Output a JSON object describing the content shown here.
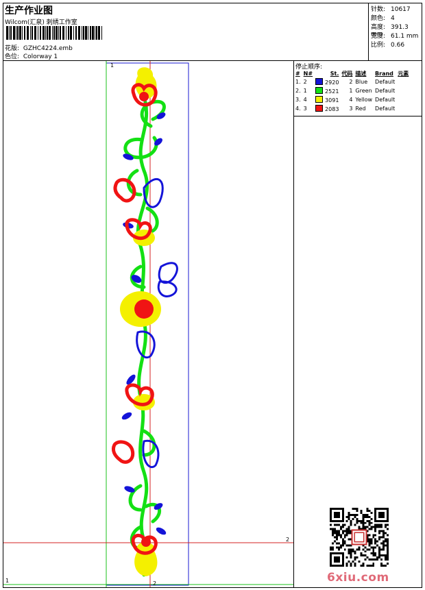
{
  "header": {
    "title": "生产作业图",
    "company": "Wilcom(汇泉) 刺绣工作室",
    "design_label": "花版:",
    "design_value": "GZHC4224.emb",
    "colorway_label": "色位:",
    "colorway_value": "Colorway 1"
  },
  "stats": [
    {
      "label": "针数:",
      "value": "10617"
    },
    {
      "label": "颜色:",
      "value": "4"
    },
    {
      "label": "高度:",
      "value": "391.3 mm"
    },
    {
      "label": "宽度:",
      "value": "61.1 mm"
    },
    {
      "label": "比例:",
      "value": "0.66"
    }
  ],
  "stop_sequence": {
    "title": "停止顺序:",
    "columns": [
      "#",
      "N#",
      "St.",
      "代码",
      "描述",
      "Brand",
      "元素"
    ],
    "rows": [
      {
        "num": "1.",
        "n": "2",
        "color": "#1414d8",
        "st": "2920",
        "code": "2",
        "desc": "Blue",
        "brand": "Default"
      },
      {
        "num": "2.",
        "n": "1",
        "color": "#14e014",
        "st": "2521",
        "code": "1",
        "desc": "Green",
        "brand": "Default"
      },
      {
        "num": "3.",
        "n": "4",
        "color": "#f4f000",
        "st": "3091",
        "code": "4",
        "desc": "Yellow",
        "brand": "Default"
      },
      {
        "num": "4.",
        "n": "3",
        "color": "#f01414",
        "st": "2083",
        "code": "3",
        "desc": "Red",
        "brand": "Default"
      }
    ]
  },
  "axis_markers": {
    "one": "1",
    "two": "2"
  },
  "watermark": "6xiu.com",
  "colors": {
    "blue": "#1414d8",
    "green": "#14e014",
    "yellow": "#f4f000",
    "red": "#f01414",
    "guide_green": "#19c219",
    "guide_red": "#d42020",
    "guide_blue": "#1a1ad0"
  }
}
